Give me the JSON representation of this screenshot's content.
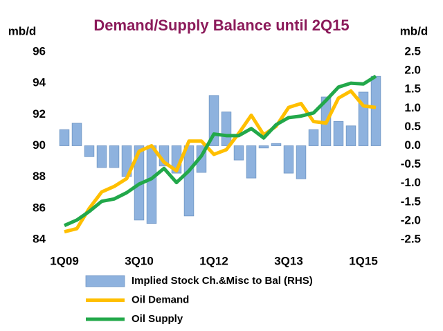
{
  "chart_data": {
    "type": "combo",
    "title": "Demand/Supply Balance until 2Q15",
    "y_label": "mb/d",
    "y2_label": "mb/d",
    "categories": [
      "1Q09",
      null,
      null,
      null,
      null,
      null,
      "3Q10",
      null,
      null,
      null,
      null,
      null,
      "1Q12",
      null,
      null,
      null,
      null,
      null,
      "3Q13",
      null,
      null,
      null,
      null,
      null,
      "1Q15",
      null
    ],
    "ylim": [
      84,
      96
    ],
    "yticks": [
      84,
      86,
      88,
      90,
      92,
      94,
      96
    ],
    "y2lim": [
      -2.5,
      2.5
    ],
    "y2ticks": [
      {
        "value": -2.5,
        "label": "-2.5"
      },
      {
        "value": -2,
        "label": "-2.0"
      },
      {
        "value": -1.5,
        "label": "-1.5"
      },
      {
        "value": -1,
        "label": "-1.0"
      },
      {
        "value": -0.5,
        "label": "-0.5"
      },
      {
        "value": 0,
        "label": "0.0"
      },
      {
        "value": 0.5,
        "label": "0.5"
      },
      {
        "value": 1,
        "label": "1.0"
      },
      {
        "value": 1.5,
        "label": "1.5"
      },
      {
        "value": 2,
        "label": "2.0"
      },
      {
        "value": 2.5,
        "label": "2.5"
      }
    ],
    "series": [
      {
        "name": "Implied Stock Ch.&Misc to Bal (RHS)",
        "type": "bar",
        "axis": "y2",
        "color": "#8eb2de",
        "values": [
          0.43,
          0.6,
          -0.29,
          -0.58,
          -0.58,
          -0.82,
          -1.98,
          -2.07,
          -0.54,
          -0.73,
          -1.87,
          -0.71,
          1.34,
          0.9,
          -0.38,
          -0.86,
          -0.06,
          0.06,
          -0.73,
          -0.88,
          0.43,
          1.3,
          0.65,
          0.53,
          1.43,
          1.85
        ]
      },
      {
        "name": "Oil Demand",
        "type": "line",
        "color": "#ffbf00",
        "values": [
          84.5,
          84.7,
          86.0,
          87.05,
          87.4,
          87.9,
          89.65,
          90.0,
          88.95,
          88.4,
          90.3,
          90.3,
          89.45,
          89.75,
          90.8,
          91.95,
          90.7,
          91.25,
          92.45,
          92.7,
          91.55,
          91.45,
          93.05,
          93.5,
          92.55,
          92.45
        ]
      },
      {
        "name": "Oil Supply",
        "type": "line",
        "color": "#22a84a",
        "values": [
          84.9,
          85.25,
          85.8,
          86.45,
          86.6,
          87.0,
          87.55,
          87.9,
          88.55,
          87.65,
          88.4,
          89.35,
          90.75,
          90.65,
          90.65,
          91.1,
          90.5,
          91.35,
          91.8,
          91.9,
          92.1,
          92.9,
          93.75,
          94.0,
          93.95,
          94.45
        ]
      }
    ]
  }
}
